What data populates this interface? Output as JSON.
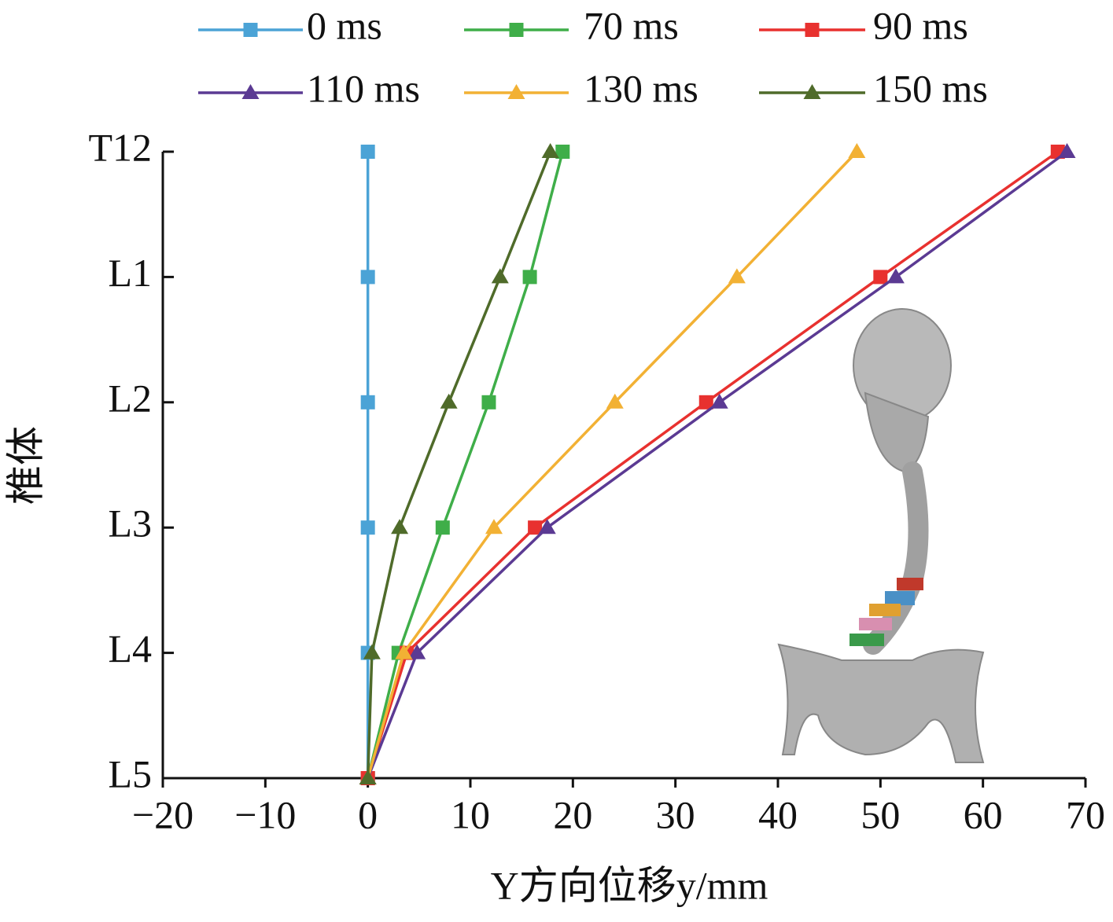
{
  "chart_data": {
    "type": "line",
    "x_label": "Y方向位移y/mm",
    "y_label": "椎体",
    "categories": [
      "T12",
      "L1",
      "L2",
      "L3",
      "L4",
      "L5"
    ],
    "xlim": [
      -20,
      70
    ],
    "xticks": [
      {
        "value": -20,
        "label": "−20"
      },
      {
        "value": -10,
        "label": "−10"
      },
      0,
      10,
      20,
      30,
      40,
      50,
      60,
      70
    ],
    "legend": "top",
    "series": [
      {
        "name": "0 ms",
        "color": "#4ba3d6",
        "marker": "square",
        "values": [
          0,
          0,
          0,
          0,
          0,
          0
        ]
      },
      {
        "name": "70 ms",
        "color": "#3fae49",
        "marker": "square",
        "values": [
          19.0,
          15.8,
          11.8,
          7.3,
          3.0,
          0
        ]
      },
      {
        "name": "90 ms",
        "color": "#e8312f",
        "marker": "square",
        "values": [
          67.3,
          50.0,
          33.0,
          16.3,
          3.8,
          0
        ]
      },
      {
        "name": "110 ms",
        "color": "#5b3a93",
        "marker": "triangle",
        "values": [
          68.2,
          51.5,
          34.3,
          17.5,
          4.8,
          0
        ]
      },
      {
        "name": "130 ms",
        "color": "#f2b134",
        "marker": "triangle",
        "values": [
          47.7,
          36.0,
          24.1,
          12.3,
          3.5,
          0
        ]
      },
      {
        "name": "150 ms",
        "color": "#4f6b2a",
        "marker": "triangle",
        "values": [
          17.8,
          12.9,
          7.9,
          3.1,
          0.4,
          0
        ]
      }
    ]
  }
}
